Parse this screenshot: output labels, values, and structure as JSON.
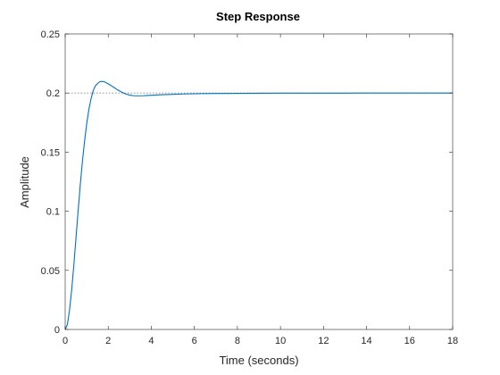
{
  "chart_data": {
    "type": "line",
    "title": "Step Response",
    "xlabel": "Time (seconds)",
    "ylabel": "Amplitude",
    "xlim": [
      0,
      18
    ],
    "ylim": [
      0,
      0.25
    ],
    "x_ticks": [
      "0",
      "2",
      "4",
      "6",
      "8",
      "10",
      "12",
      "14",
      "16",
      "18"
    ],
    "y_ticks": [
      "0",
      "0.05",
      "0.1",
      "0.15",
      "0.2",
      "0.25"
    ],
    "grid": false,
    "legend": "none",
    "reference_line": {
      "y": 0.2,
      "style": "dotted",
      "color": "#7f7f7f"
    },
    "series": [
      {
        "color": "#0072bd",
        "x": [
          0,
          0.1,
          0.2,
          0.3,
          0.4,
          0.5,
          0.6,
          0.7,
          0.8,
          0.9,
          1.0,
          1.1,
          1.2,
          1.3,
          1.4,
          1.5,
          1.6,
          1.7,
          1.8,
          1.9,
          2.0,
          2.2,
          2.4,
          2.6,
          2.8,
          3.0,
          3.2,
          3.4,
          3.6,
          3.8,
          4.0,
          4.5,
          5.0,
          5.5,
          6.0,
          7.0,
          8.0,
          10.0,
          12.0,
          14.0,
          16.0,
          18.0
        ],
        "y": [
          0,
          0.004,
          0.016,
          0.033,
          0.054,
          0.077,
          0.1,
          0.122,
          0.142,
          0.159,
          0.174,
          0.186,
          0.195,
          0.202,
          0.206,
          0.208,
          0.2095,
          0.2098,
          0.2096,
          0.2088,
          0.2078,
          0.2055,
          0.2031,
          0.201,
          0.1993,
          0.1982,
          0.1977,
          0.1976,
          0.1977,
          0.1979,
          0.1981,
          0.1986,
          0.1989,
          0.1992,
          0.1994,
          0.1996,
          0.1997,
          0.1999,
          0.1999,
          0.2,
          0.2,
          0.2
        ]
      }
    ]
  }
}
